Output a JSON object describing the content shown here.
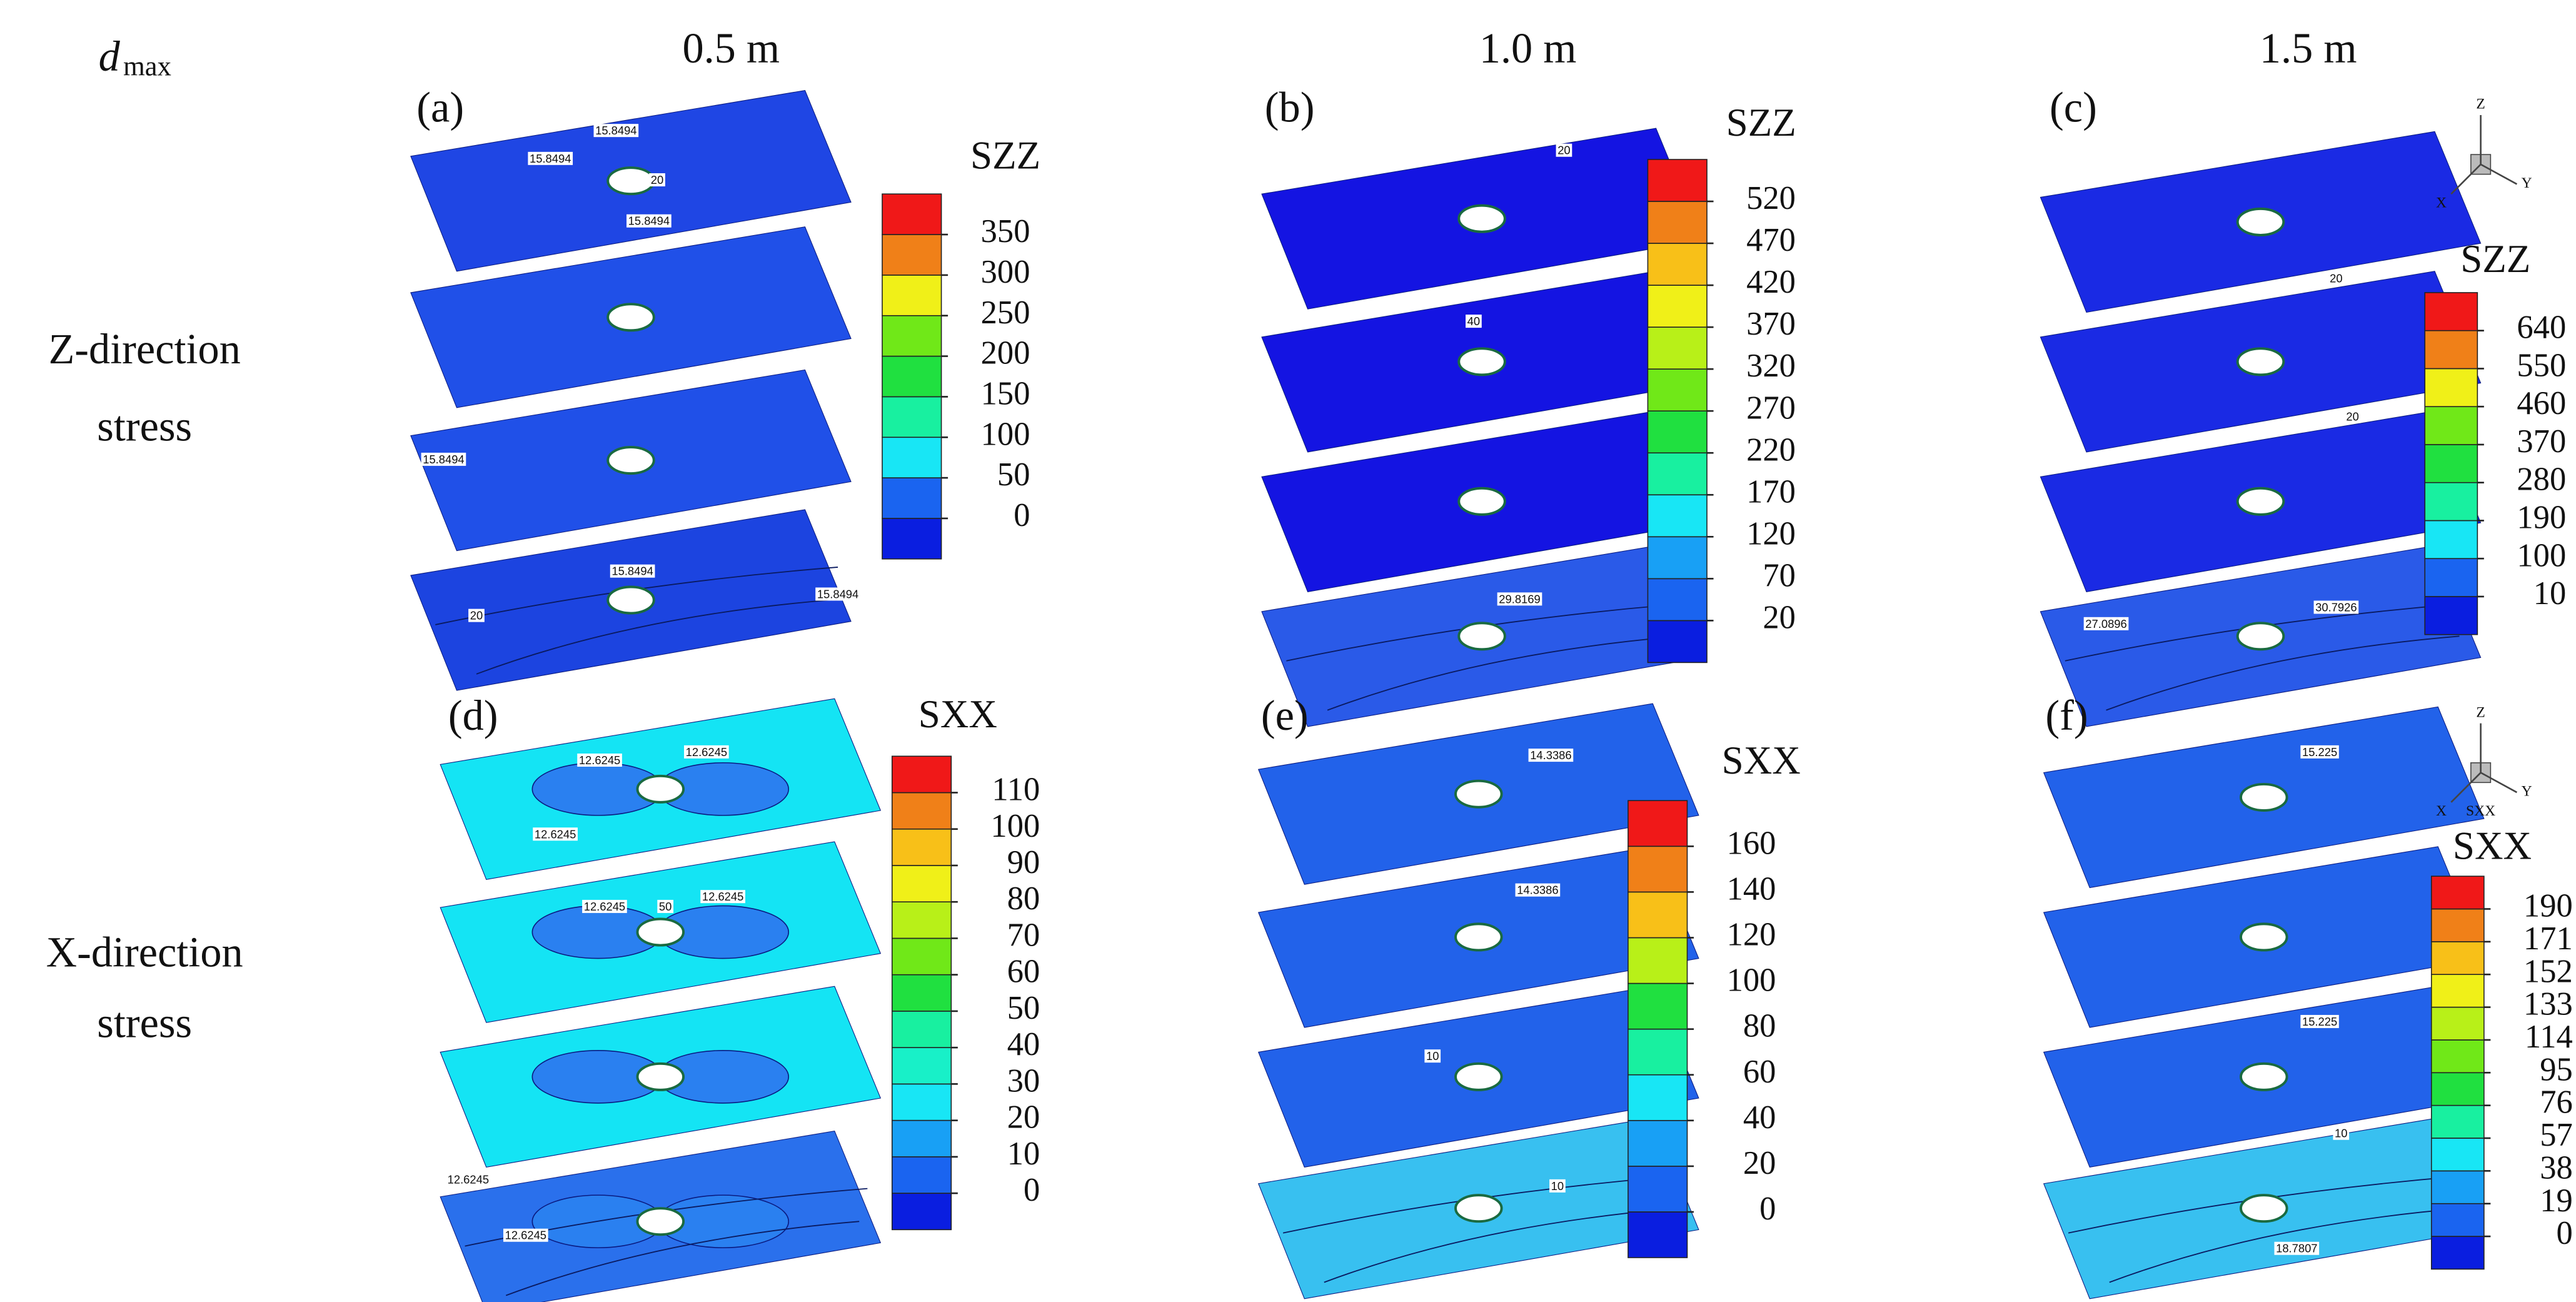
{
  "header": {
    "dmax_symbol": "d",
    "dmax_subscript": "max",
    "columns": [
      "0.5 m",
      "1.0 m",
      "1.5 m"
    ]
  },
  "rows": [
    {
      "label_lines": [
        "Z-direction",
        "stress"
      ]
    },
    {
      "label_lines": [
        "X-direction",
        "stress"
      ]
    }
  ],
  "panels": [
    {
      "tag": "(a)",
      "colorbar": {
        "title": "SZZ",
        "ticks": [
          350,
          300,
          250,
          200,
          150,
          100,
          50,
          0
        ],
        "colors": [
          "#0a1ee0",
          "#1a64f0",
          "#18e6f5",
          "#18f0a0",
          "#20e040",
          "#70e818",
          "#f0f018",
          "#f08018",
          "#f01818"
        ]
      },
      "contour_labels": [
        "15.8494",
        "15.8494",
        "20",
        "15.8494",
        "15.8494",
        "20",
        "15.8494",
        "15.8494"
      ],
      "axis_labels": []
    },
    {
      "tag": "(b)",
      "colorbar": {
        "title": "SZZ",
        "ticks": [
          520,
          470,
          420,
          370,
          320,
          270,
          220,
          170,
          120,
          70,
          20
        ],
        "colors": [
          "#0a1ee0",
          "#1a64f0",
          "#18a0f5",
          "#18e6f5",
          "#18f0a0",
          "#20e040",
          "#70e818",
          "#b8f018",
          "#f0f018",
          "#f8c018",
          "#f08018",
          "#f01818"
        ]
      },
      "contour_labels": [
        "20",
        "40",
        "29.8169"
      ],
      "axis_labels": []
    },
    {
      "tag": "(c)",
      "colorbar": {
        "title": "SZZ",
        "ticks": [
          640,
          550,
          460,
          370,
          280,
          190,
          100,
          10
        ],
        "colors": [
          "#0a1ee0",
          "#1a64f0",
          "#18e6f5",
          "#18f0a0",
          "#20e040",
          "#70e818",
          "#f0f018",
          "#f08018",
          "#f01818"
        ]
      },
      "contour_labels": [
        "20",
        "20",
        "27.0896",
        "30.7926"
      ],
      "axis_labels": [
        "Z",
        "X",
        "Y"
      ]
    },
    {
      "tag": "(d)",
      "colorbar": {
        "title": "SXX",
        "ticks": [
          110,
          100,
          90,
          80,
          70,
          60,
          50,
          40,
          30,
          20,
          10,
          0
        ],
        "colors": [
          "#0a1ee0",
          "#1a64f0",
          "#18a0f5",
          "#18e6f5",
          "#18f0c8",
          "#18f0a0",
          "#20e040",
          "#70e818",
          "#b8f018",
          "#f0f018",
          "#f8c018",
          "#f08018",
          "#f01818"
        ]
      },
      "contour_labels": [
        "12.6245",
        "12.6245",
        "12.6245",
        "12.6245",
        "50",
        "12.6245",
        "12.6245",
        "12.6245"
      ],
      "axis_labels": []
    },
    {
      "tag": "(e)",
      "colorbar": {
        "title": "SXX",
        "ticks": [
          160,
          140,
          120,
          100,
          80,
          60,
          40,
          20,
          0
        ],
        "colors": [
          "#0a1ee0",
          "#1a64f0",
          "#18a0f5",
          "#18e6f5",
          "#18f0a0",
          "#20e040",
          "#b8f018",
          "#f8c018",
          "#f08018",
          "#f01818"
        ]
      },
      "contour_labels": [
        "14.3386",
        "14.3386",
        "10",
        "10"
      ],
      "axis_labels": []
    },
    {
      "tag": "(f)",
      "colorbar": {
        "title": "SXX",
        "ticks": [
          190,
          171,
          152,
          133,
          114,
          95,
          76,
          57,
          38,
          19,
          0
        ],
        "colors": [
          "#0a1ee0",
          "#1a64f0",
          "#18a0f5",
          "#18e6f5",
          "#18f0a0",
          "#20e040",
          "#70e818",
          "#b8f018",
          "#f0f018",
          "#f8c018",
          "#f08018",
          "#f01818"
        ]
      },
      "contour_labels": [
        "15.225",
        "15.225",
        "18.7807",
        "10"
      ],
      "axis_labels": [
        "Z",
        "X",
        "Y",
        "SXX"
      ]
    }
  ]
}
